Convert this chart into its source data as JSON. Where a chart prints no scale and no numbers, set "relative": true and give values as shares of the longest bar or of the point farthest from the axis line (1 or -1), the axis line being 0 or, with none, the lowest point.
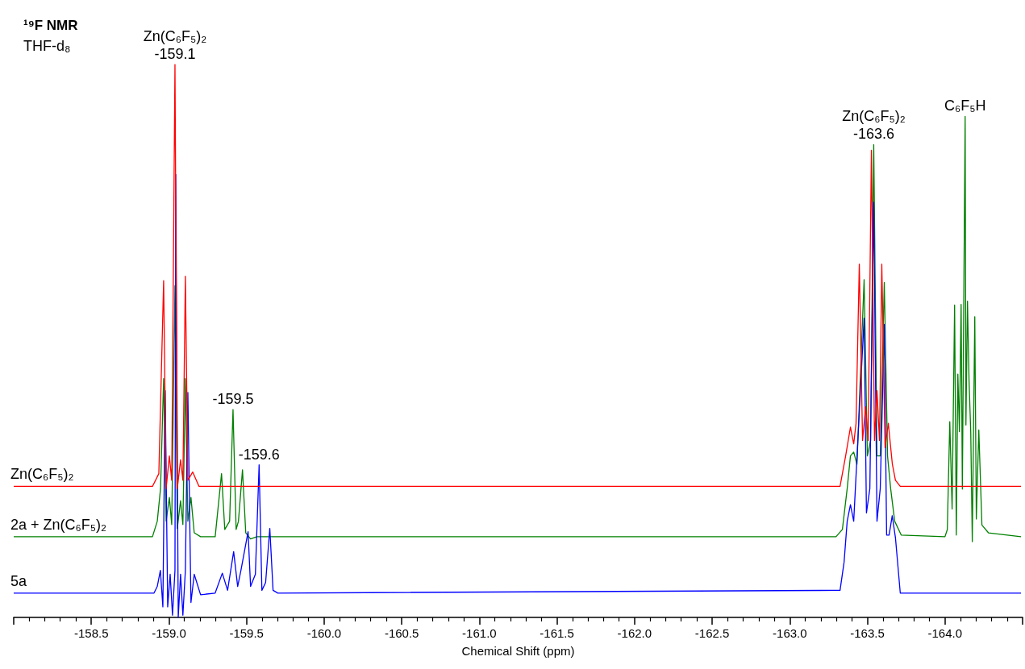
{
  "chart_data": {
    "type": "line",
    "title": "¹⁹F NMR",
    "subtitle": "THF-d₈",
    "xlabel": "Chemical Shift (ppm)",
    "relative": true,
    "marker": "none",
    "grid": false,
    "legend": false,
    "xlim": [
      -158.0,
      -164.5
    ],
    "xticks": [
      {
        "value": -158.0,
        "label": null
      },
      -158.5,
      {
        "value": -159.0,
        "label": "-159.0"
      },
      -159.5,
      {
        "value": -160.0,
        "label": "-160.0"
      },
      -160.5,
      {
        "value": -161.0,
        "label": "-161.0"
      },
      -161.5,
      {
        "value": -162.0,
        "label": "-162.0"
      },
      -162.5,
      {
        "value": -163.0,
        "label": "-163.0"
      },
      -163.5,
      {
        "value": -164.0,
        "label": "-164.0"
      },
      {
        "value": -164.5,
        "label": null
      }
    ],
    "annotations": [
      {
        "text": "Zn(C₆F₅)₂",
        "x": -159.039,
        "y": 1.0
      },
      {
        "text": "-159.1",
        "x": -159.039,
        "y": 1.0
      },
      {
        "text": "-159.5",
        "x": -159.413,
        "y": 0.376
      },
      {
        "text": "-159.6",
        "x": -159.581,
        "y": 0.276
      },
      {
        "text": "Zn(C₆F₅)₂",
        "x": -163.541,
        "y": 0.855
      },
      {
        "text": "-163.6",
        "x": -163.541,
        "y": 0.855
      },
      {
        "text": "C₆F₅H",
        "x": -164.13,
        "y": 0.906
      }
    ],
    "series": [
      {
        "name": "2a + Zn(C₆F₅)₂",
        "color": "#008000",
        "x": [
          -158.0,
          -158.894,
          -158.925,
          -158.946,
          -158.966,
          -158.982,
          -159.003,
          -159.018,
          -159.039,
          -159.054,
          -159.075,
          -159.09,
          -159.106,
          -159.122,
          -159.142,
          -159.163,
          -159.204,
          -159.298,
          -159.339,
          -159.36,
          -159.391,
          -159.413,
          -159.433,
          -159.448,
          -159.474,
          -159.495,
          -159.526,
          -159.567,
          -163.298,
          -163.339,
          -163.37,
          -163.391,
          -163.412,
          -163.433,
          -163.479,
          -163.5,
          -163.521,
          -163.541,
          -163.562,
          -163.583,
          -163.609,
          -163.63,
          -163.65,
          -163.676,
          -163.718,
          -164.0,
          -164.015,
          -164.031,
          -164.046,
          -164.062,
          -164.073,
          -164.083,
          -164.093,
          -164.104,
          -164.112,
          -164.13,
          -164.135,
          -164.145,
          -164.155,
          -164.166,
          -164.176,
          -164.192,
          -164.202,
          -164.218,
          -164.238,
          -164.28,
          -164.49
        ],
        "values": [
          0.146,
          0.146,
          0.174,
          0.233,
          0.432,
          0.174,
          0.217,
          0.168,
          0.6,
          0.161,
          0.211,
          0.168,
          0.432,
          0.174,
          0.217,
          0.153,
          0.146,
          0.146,
          0.26,
          0.159,
          0.174,
          0.376,
          0.159,
          0.174,
          0.267,
          0.153,
          0.142,
          0.146,
          0.146,
          0.159,
          0.233,
          0.292,
          0.299,
          0.277,
          0.611,
          0.292,
          0.32,
          0.855,
          0.292,
          0.292,
          0.606,
          0.292,
          0.233,
          0.174,
          0.149,
          0.146,
          0.159,
          0.354,
          0.196,
          0.565,
          0.149,
          0.44,
          0.336,
          0.566,
          0.232,
          0.906,
          0.348,
          0.572,
          0.429,
          0.336,
          0.137,
          0.544,
          0.178,
          0.339,
          0.167,
          0.153,
          0.146
        ]
      },
      {
        "name": "5a",
        "color": "#0000ff",
        "x": [
          -158.0,
          -158.904,
          -158.925,
          -158.945,
          -158.961,
          -158.976,
          -158.992,
          -159.008,
          -159.023,
          -159.039,
          -159.044,
          -159.06,
          -159.075,
          -159.09,
          -159.106,
          -159.122,
          -159.142,
          -159.163,
          -159.204,
          -159.298,
          -159.344,
          -159.378,
          -159.417,
          -159.443,
          -159.464,
          -159.51,
          -159.526,
          -159.557,
          -159.581,
          -159.599,
          -159.623,
          -159.65,
          -159.671,
          -159.702,
          -163.324,
          -163.35,
          -163.37,
          -163.391,
          -163.412,
          -163.479,
          -163.494,
          -163.516,
          -163.541,
          -163.562,
          -163.583,
          -163.609,
          -163.624,
          -163.64,
          -163.66,
          -163.681,
          -163.712,
          -164.49
        ],
        "values": [
          0.044,
          0.044,
          0.056,
          0.085,
          0.019,
          0.41,
          0.019,
          0.078,
          0.004,
          0.085,
          0.801,
          0.0,
          0.078,
          0.004,
          0.085,
          0.407,
          0.027,
          0.078,
          0.041,
          0.044,
          0.08,
          0.049,
          0.119,
          0.056,
          0.085,
          0.155,
          0.056,
          0.078,
          0.276,
          0.049,
          0.063,
          0.161,
          0.049,
          0.044,
          0.049,
          0.1,
          0.174,
          0.204,
          0.174,
          0.541,
          0.189,
          0.233,
          0.751,
          0.174,
          0.233,
          0.53,
          0.149,
          0.149,
          0.184,
          0.144,
          0.044,
          0.044
        ]
      },
      {
        "name": "Zn(C₆F₅)₂",
        "color": "#ff0000",
        "x": [
          -158.0,
          -158.894,
          -158.935,
          -158.966,
          -158.982,
          -159.003,
          -159.018,
          -159.039,
          -159.054,
          -159.075,
          -159.09,
          -159.106,
          -159.122,
          -159.153,
          -159.194,
          -163.324,
          -163.36,
          -163.391,
          -163.412,
          -163.427,
          -163.448,
          -163.469,
          -163.489,
          -163.505,
          -163.526,
          -163.546,
          -163.562,
          -163.578,
          -163.593,
          -163.614,
          -163.635,
          -163.661,
          -163.681,
          -163.712,
          -164.49
        ],
        "values": [
          0.237,
          0.237,
          0.26,
          0.609,
          0.233,
          0.292,
          0.248,
          1.0,
          0.233,
          0.285,
          0.248,
          0.617,
          0.248,
          0.263,
          0.237,
          0.237,
          0.292,
          0.344,
          0.314,
          0.351,
          0.639,
          0.32,
          0.381,
          0.32,
          0.845,
          0.32,
          0.41,
          0.32,
          0.639,
          0.307,
          0.351,
          0.277,
          0.248,
          0.237,
          0.237
        ]
      }
    ]
  }
}
